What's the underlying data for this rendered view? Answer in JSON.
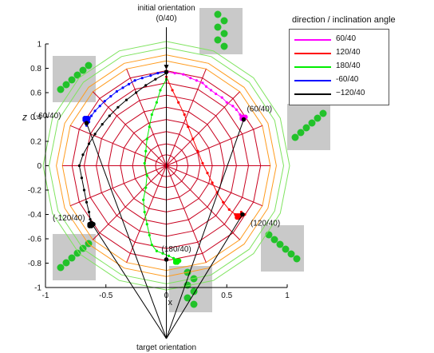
{
  "chart_data": {
    "type": "scatter",
    "title": "",
    "xlabel": "x",
    "ylabel": "z",
    "xlim": [
      -1,
      1
    ],
    "ylim": [
      -1,
      1
    ],
    "x_ticks": [
      "-1",
      "-0.5",
      "0",
      "0.5",
      "1"
    ],
    "y_ticks": [
      "1",
      "0.8",
      "0.6",
      "0.4",
      "0.2",
      "0",
      "-0.2",
      "-0.4",
      "-0.6",
      "-0.8",
      "-1"
    ],
    "polar_grid": true,
    "legend": {
      "title": "direction / inclination angle",
      "position": "top-right outside"
    },
    "series": [
      {
        "name": "60/40",
        "color": "#ff00ff",
        "points": [
          [
            0.0,
            0.77
          ],
          [
            0.07,
            0.76
          ],
          [
            0.14,
            0.75
          ],
          [
            0.2,
            0.72
          ],
          [
            0.25,
            0.7
          ],
          [
            0.3,
            0.68
          ],
          [
            0.33,
            0.65
          ],
          [
            0.37,
            0.62
          ],
          [
            0.41,
            0.59
          ],
          [
            0.46,
            0.56
          ],
          [
            0.5,
            0.52
          ],
          [
            0.55,
            0.49
          ],
          [
            0.58,
            0.46
          ],
          [
            0.61,
            0.42
          ],
          [
            0.63,
            0.39
          ],
          [
            0.64,
            0.37
          ],
          [
            0.62,
            0.38
          ],
          [
            0.64,
            0.4
          ]
        ]
      },
      {
        "name": "120/40",
        "color": "#ff0000",
        "points": [
          [
            0.0,
            0.73
          ],
          [
            0.05,
            0.62
          ],
          [
            0.1,
            0.52
          ],
          [
            0.15,
            0.42
          ],
          [
            0.18,
            0.32
          ],
          [
            0.22,
            0.22
          ],
          [
            0.26,
            0.12
          ],
          [
            0.3,
            0.02
          ],
          [
            0.34,
            -0.06
          ],
          [
            0.38,
            -0.14
          ],
          [
            0.42,
            -0.22
          ],
          [
            0.47,
            -0.3
          ],
          [
            0.52,
            -0.36
          ],
          [
            0.57,
            -0.4
          ],
          [
            0.61,
            -0.42
          ],
          [
            0.65,
            -0.4
          ],
          [
            0.62,
            -0.38
          ],
          [
            0.6,
            -0.41
          ]
        ]
      },
      {
        "name": "180/40",
        "color": "#00ee00",
        "points": [
          [
            0.0,
            0.71
          ],
          [
            -0.05,
            0.62
          ],
          [
            -0.08,
            0.52
          ],
          [
            -0.12,
            0.42
          ],
          [
            -0.14,
            0.32
          ],
          [
            -0.16,
            0.22
          ],
          [
            -0.17,
            0.12
          ],
          [
            -0.18,
            0.02
          ],
          [
            -0.16,
            -0.08
          ],
          [
            -0.17,
            -0.18
          ],
          [
            -0.19,
            -0.28
          ],
          [
            -0.18,
            -0.38
          ],
          [
            -0.16,
            -0.48
          ],
          [
            -0.14,
            -0.57
          ],
          [
            -0.12,
            -0.65
          ],
          [
            -0.08,
            -0.7
          ],
          [
            -0.03,
            -0.72
          ],
          [
            0.02,
            -0.74
          ],
          [
            0.06,
            -0.76
          ],
          [
            0.09,
            -0.78
          ]
        ]
      },
      {
        "name": "-60/40",
        "color": "#0000ff",
        "points": [
          [
            0.0,
            0.77
          ],
          [
            -0.07,
            0.76
          ],
          [
            -0.13,
            0.74
          ],
          [
            -0.2,
            0.72
          ],
          [
            -0.26,
            0.7
          ],
          [
            -0.31,
            0.67
          ],
          [
            -0.36,
            0.64
          ],
          [
            -0.41,
            0.61
          ],
          [
            -0.46,
            0.57
          ],
          [
            -0.51,
            0.53
          ],
          [
            -0.55,
            0.49
          ],
          [
            -0.59,
            0.45
          ],
          [
            -0.62,
            0.41
          ],
          [
            -0.64,
            0.38
          ],
          [
            -0.65,
            0.35
          ],
          [
            -0.66,
            0.33
          ],
          [
            -0.64,
            0.36
          ],
          [
            -0.66,
            0.39
          ]
        ]
      },
      {
        "name": "−120/40",
        "color": "#000000",
        "points": [
          [
            0.0,
            0.76
          ],
          [
            -0.09,
            0.71
          ],
          [
            -0.17,
            0.66
          ],
          [
            -0.25,
            0.6
          ],
          [
            -0.33,
            0.54
          ],
          [
            -0.4,
            0.48
          ],
          [
            -0.47,
            0.41
          ],
          [
            -0.53,
            0.34
          ],
          [
            -0.59,
            0.26
          ],
          [
            -0.64,
            0.18
          ],
          [
            -0.69,
            0.09
          ],
          [
            -0.72,
            0.0
          ],
          [
            -0.7,
            -0.1
          ],
          [
            -0.68,
            -0.2
          ],
          [
            -0.66,
            -0.3
          ],
          [
            -0.64,
            -0.38
          ],
          [
            -0.63,
            -0.44
          ],
          [
            -0.62,
            -0.48
          ]
        ]
      }
    ],
    "annotations": [
      {
        "label": "initial orientation",
        "x": 0.0,
        "y": 0.77
      },
      {
        "label": "(0/40)",
        "x": 0.0,
        "y": 0.77
      },
      {
        "label": "(60/40)",
        "x": 0.64,
        "y": 0.38
      },
      {
        "label": "(-60/40)",
        "x": -0.66,
        "y": 0.35
      },
      {
        "label": "(120/40)",
        "x": 0.63,
        "y": -0.4
      },
      {
        "label": "(-120/40)",
        "x": -0.62,
        "y": -0.47
      },
      {
        "label": "(180/40)",
        "x": 0.0,
        "y": -0.77
      },
      {
        "label": "target orientation",
        "x": 0.0,
        "y": -1.35
      }
    ],
    "targets": [
      [
        0.0,
        0.77
      ],
      [
        0.64,
        0.38
      ],
      [
        -0.66,
        0.35
      ],
      [
        0.63,
        -0.4
      ],
      [
        -0.62,
        -0.47
      ],
      [
        0.0,
        -0.77
      ]
    ]
  },
  "colors": {
    "grid_red": "#c8001e",
    "grid_orange": "#ff9b1e",
    "grid_green": "#7fe35f",
    "axis": "#000000",
    "inset_bg": "#c9c9c9",
    "inset_insect": "#22c22a"
  },
  "insets": [
    {
      "name": "inset-top",
      "icon": "insect-inset"
    },
    {
      "name": "inset-top-left",
      "icon": "insect-inset"
    },
    {
      "name": "inset-right",
      "icon": "insect-inset"
    },
    {
      "name": "inset-bottom-left",
      "icon": "insect-inset"
    },
    {
      "name": "inset-bottom-right",
      "icon": "insect-inset"
    },
    {
      "name": "inset-bottom",
      "icon": "insect-inset"
    }
  ]
}
